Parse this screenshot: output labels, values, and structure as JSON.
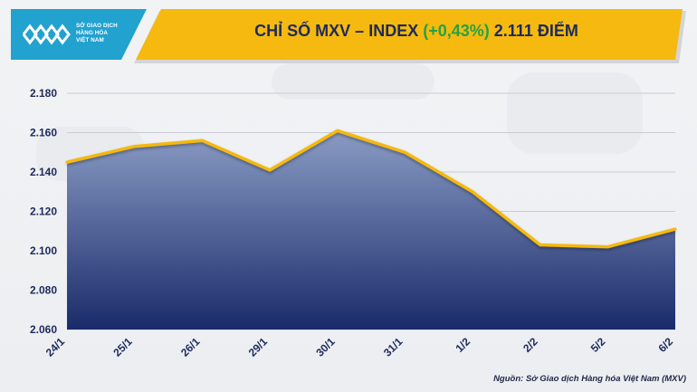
{
  "header": {
    "title_prefix": "CHỈ SỐ MXV – INDEX ",
    "title_change": "(+0,43%)",
    "title_suffix": " 2.111 ĐIỂM",
    "title_color": "#1d2a5c",
    "change_color": "#25a244",
    "band_color": "#f5b90f"
  },
  "logo": {
    "lines": [
      "SỞ GIAO DỊCH",
      "HÀNG HÓA",
      "VIỆT NAM"
    ],
    "color": "#22a2cf",
    "icon": "mxv-logo-icon"
  },
  "source": "Nguồn: Sở Giao dịch Hàng hóa Việt Nam (MXV)",
  "chart_data": {
    "type": "area",
    "categories": [
      "24/1",
      "25/1",
      "26/1",
      "29/1",
      "30/1",
      "31/1",
      "1/2",
      "2/2",
      "5/2",
      "6/2"
    ],
    "values": [
      2145,
      2153,
      2156,
      2141,
      2161,
      2150,
      2130,
      2103,
      2102,
      2111
    ],
    "ylim": [
      2060,
      2180
    ],
    "yticks": [
      2060,
      2080,
      2100,
      2120,
      2140,
      2160,
      2180
    ],
    "ytick_labels": [
      "2.060",
      "2.080",
      "2.100",
      "2.120",
      "2.140",
      "2.160",
      "2.180"
    ],
    "grid": true,
    "line_color": "#f5b90f",
    "fill_top_color": "#8a9cc4",
    "fill_bottom_color": "#1a2b6b"
  }
}
